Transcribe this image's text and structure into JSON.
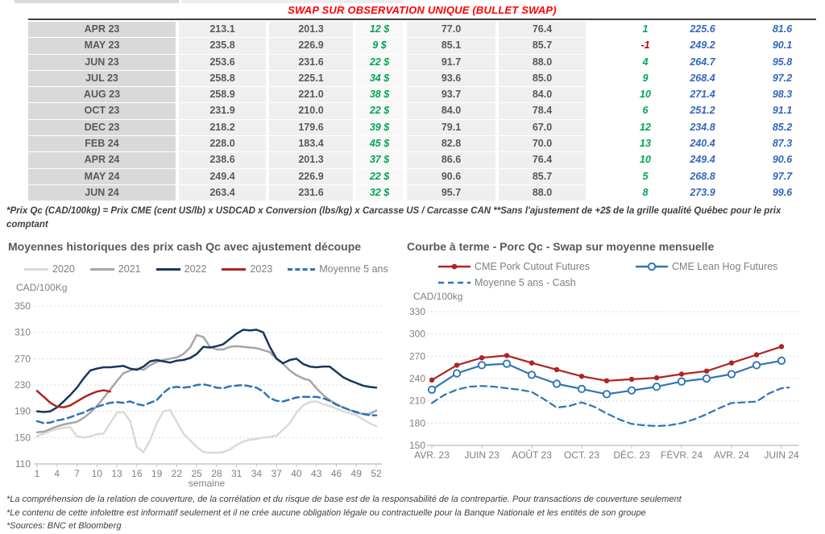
{
  "table": {
    "title": "SWAP SUR OBSERVATION UNIQUE (BULLET SWAP)",
    "rows": [
      [
        "APR 23",
        "213.1",
        "201.3",
        "12 $",
        "77.0",
        "76.4",
        "1",
        "225.6",
        "81.6"
      ],
      [
        "MAY 23",
        "235.8",
        "226.9",
        "9 $",
        "85.1",
        "85.7",
        "-1",
        "249.2",
        "90.1"
      ],
      [
        "JUN 23",
        "253.6",
        "231.6",
        "22 $",
        "91.7",
        "88.0",
        "4",
        "264.7",
        "95.8"
      ],
      [
        "JUL 23",
        "258.8",
        "225.1",
        "34 $",
        "93.6",
        "85.0",
        "9",
        "268.4",
        "97.2"
      ],
      [
        "AUG 23",
        "258.9",
        "221.0",
        "38 $",
        "93.7",
        "84.0",
        "10",
        "271.4",
        "98.3"
      ],
      [
        "OCT 23",
        "231.9",
        "210.0",
        "22 $",
        "84.0",
        "78.4",
        "6",
        "251.2",
        "91.1"
      ],
      [
        "DEC 23",
        "218.2",
        "179.6",
        "39 $",
        "79.1",
        "67.0",
        "12",
        "234.8",
        "85.2"
      ],
      [
        "FEB 24",
        "228.0",
        "183.4",
        "45 $",
        "82.8",
        "70.0",
        "13",
        "240.4",
        "87.3"
      ],
      [
        "APR 24",
        "238.6",
        "201.3",
        "37 $",
        "86.6",
        "76.4",
        "10",
        "249.4",
        "90.6"
      ],
      [
        "MAY 24",
        "249.4",
        "226.9",
        "22 $",
        "90.6",
        "85.7",
        "5",
        "268.8",
        "97.7"
      ],
      [
        "JUN 24",
        "263.4",
        "231.6",
        "32 $",
        "95.7",
        "88.0",
        "8",
        "273.9",
        "99.6"
      ]
    ],
    "footnote": "*Prix Qc (CAD/100kg) = Prix CME (cent US/lb) x USDCAD x Conversion (lbs/kg) x Carcasse US / Carcasse CAN **Sans l'ajustement de +2$ de la grille qualité Québec pour le prix comptant"
  },
  "colors": {
    "title_red": "#ff0000",
    "positive_green": "#00a550",
    "negative_red": "#c00000",
    "swap_blue": "#3366bb",
    "table_text": "#595959"
  },
  "chart_data": [
    {
      "type": "line",
      "title": "Moyennes historiques des prix cash Qc avec ajustement découpe",
      "unit_label": "CAD/100Kg",
      "xlabel": "semaine",
      "ylim": [
        110,
        350
      ],
      "yticks": [
        110,
        150,
        190,
        230,
        270,
        310,
        350
      ],
      "x_range": [
        1,
        52
      ],
      "xticks": [
        1,
        4,
        7,
        10,
        13,
        16,
        19,
        22,
        25,
        28,
        31,
        34,
        37,
        40,
        43,
        46,
        49,
        52
      ],
      "grid": true,
      "legend_position": "top",
      "series": [
        {
          "name": "2020",
          "color": "#d9d9d9",
          "style": "solid",
          "x_start": 1,
          "values": [
            152,
            156,
            160,
            163,
            165,
            166,
            152,
            150,
            152,
            155,
            156,
            172,
            188,
            189,
            175,
            136,
            128,
            146,
            172,
            190,
            192,
            174,
            156,
            146,
            136,
            128,
            127,
            127,
            128,
            132,
            139,
            144,
            147,
            148,
            150,
            151,
            153,
            162,
            172,
            188,
            199,
            204,
            205,
            201,
            198,
            194,
            190,
            187,
            184,
            178,
            172,
            167
          ]
        },
        {
          "name": "2021",
          "color": "#a6a6a6",
          "style": "solid",
          "x_start": 1,
          "values": [
            158,
            159,
            163,
            167,
            170,
            172,
            174,
            180,
            188,
            198,
            210,
            223,
            236,
            248,
            252,
            255,
            253,
            260,
            265,
            268,
            270,
            272,
            277,
            287,
            306,
            303,
            288,
            284,
            284,
            288,
            289,
            288,
            287,
            286,
            283,
            280,
            270,
            262,
            252,
            245,
            240,
            237,
            225,
            215,
            207,
            201,
            196,
            192,
            188,
            186,
            186,
            191
          ]
        },
        {
          "name": "2022",
          "color": "#17375e",
          "style": "solid",
          "x_start": 1,
          "values": [
            190,
            189,
            190,
            196,
            205,
            215,
            226,
            240,
            252,
            255,
            257,
            257,
            258,
            259,
            255,
            253,
            258,
            266,
            268,
            266,
            264,
            267,
            268,
            271,
            277,
            288,
            287,
            289,
            292,
            300,
            308,
            314,
            313,
            314,
            310,
            288,
            270,
            263,
            268,
            270,
            262,
            258,
            257,
            258,
            258,
            250,
            242,
            237,
            233,
            229,
            227,
            226
          ]
        },
        {
          "name": "2023",
          "color": "#b22222",
          "style": "solid",
          "x_start": 1,
          "values": [
            221,
            212,
            203,
            197,
            196,
            199,
            205,
            211,
            216,
            220,
            222,
            220
          ]
        },
        {
          "name": "Moyenne 5 ans",
          "color": "#2e75b6",
          "style": "dashed",
          "x_start": 1,
          "values": [
            175,
            172,
            173,
            176,
            178,
            181,
            185,
            188,
            193,
            197,
            200,
            203,
            204,
            203,
            205,
            201,
            199,
            203,
            207,
            218,
            226,
            227,
            226,
            227,
            230,
            231,
            229,
            226,
            225,
            228,
            229,
            230,
            228,
            226,
            220,
            210,
            206,
            205,
            208,
            211,
            212,
            212,
            212,
            210,
            206,
            200,
            196,
            192,
            189,
            186,
            184,
            184
          ]
        }
      ]
    },
    {
      "type": "line",
      "title": "Courbe à terme - Porc Qc - Swap sur moyenne mensuelle",
      "unit_label": "CAD/100kg",
      "ylim": [
        150,
        330
      ],
      "yticks": [
        150,
        180,
        210,
        240,
        270,
        300,
        330
      ],
      "x_range": [
        0,
        14
      ],
      "xticks": [
        {
          "pos": 0,
          "label": "AVR. 23"
        },
        {
          "pos": 2,
          "label": "JUIN 23"
        },
        {
          "pos": 4,
          "label": "AOÛT 23"
        },
        {
          "pos": 6,
          "label": "OCT. 23"
        },
        {
          "pos": 8,
          "label": "DÉC. 23"
        },
        {
          "pos": 10,
          "label": "FÉVR. 24"
        },
        {
          "pos": 12,
          "label": "AVR. 24"
        },
        {
          "pos": 14,
          "label": "JUIN 24"
        }
      ],
      "grid": true,
      "legend_position": "top",
      "series": [
        {
          "name": "CME Pork Cutout Futures",
          "color": "#b22222",
          "style": "solid",
          "marker": "filled",
          "x": [
            0,
            1,
            2,
            3,
            4,
            5,
            6,
            7,
            8,
            9,
            10,
            11,
            12,
            13,
            14
          ],
          "values": [
            238,
            258,
            268,
            271,
            261,
            252,
            243,
            237,
            239,
            241,
            246,
            250,
            261,
            272,
            283
          ]
        },
        {
          "name": "CME Lean Hog Futures",
          "color": "#2e75b6",
          "style": "solid",
          "marker": "open",
          "x": [
            0,
            1,
            2,
            3,
            4,
            5,
            6,
            7,
            8,
            9,
            10,
            11,
            12,
            13,
            14
          ],
          "values": [
            225,
            247,
            258,
            260,
            245,
            233,
            226,
            219,
            224,
            229,
            236,
            240,
            246,
            258,
            264
          ]
        },
        {
          "name": "Moyenne 5 ans - Cash",
          "color": "#2e75b6",
          "style": "dashed",
          "x": [
            0,
            0.5,
            1,
            1.5,
            2,
            2.5,
            3,
            3.5,
            4,
            4.5,
            5,
            5.5,
            6,
            6.5,
            7,
            7.5,
            8,
            8.5,
            9,
            9.5,
            10,
            10.5,
            11,
            11.5,
            12,
            12.5,
            13,
            13.5,
            14,
            14.3
          ],
          "values": [
            207,
            218,
            225,
            229,
            230,
            229,
            227,
            225,
            222,
            212,
            201,
            203,
            208,
            202,
            193,
            185,
            179,
            177,
            176,
            177,
            180,
            185,
            192,
            200,
            207,
            208,
            209,
            220,
            227,
            228
          ]
        }
      ]
    }
  ],
  "footer_notes": [
    "*La compréhension de la relation de couverture, de la corrélation et du risque de base est de la responsabilité de la contrepartie. Pour transactions de couverture seulement",
    "*Le contenu de cette infolettre est informatif seulement et il ne crée aucune obligation légale ou contractuelle pour la Banque Nationale et les entités de son groupe",
    "*Sources: BNC et Bloomberg"
  ]
}
